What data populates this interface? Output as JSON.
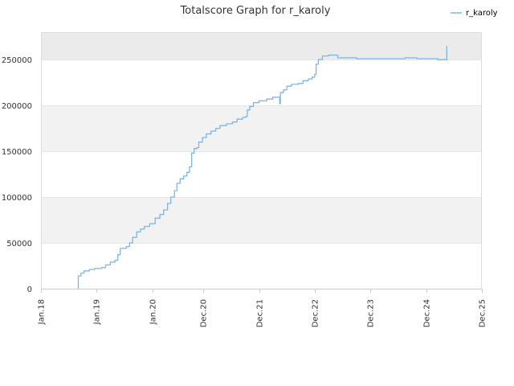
{
  "chart_data": {
    "type": "line",
    "title": "Totalscore Graph for r_karoly",
    "xlabel": "",
    "ylabel": "",
    "ylim": [
      0,
      280000
    ],
    "grid": true,
    "legend_position": "top-right",
    "y_ticks": [
      0,
      50000,
      100000,
      150000,
      200000,
      250000
    ],
    "y_tick_labels": [
      "0",
      "50000",
      "100000",
      "150000",
      "200000",
      "250000"
    ],
    "x_ticks": [
      "2018-01-01",
      "2019-01-01",
      "2020-01-01",
      "2020-12-01",
      "2021-12-01",
      "2022-12-01",
      "2023-12-01",
      "2024-12-01",
      "2025-12-01"
    ],
    "x_tick_labels": [
      "Jan.18",
      "Jan.19",
      "Jan.20",
      "Dec.20",
      "Dec.21",
      "Dec.22",
      "Dec.23",
      "Dec.24",
      "Dec.25"
    ],
    "xlim": [
      "2018-01-01",
      "2025-12-01"
    ],
    "series": [
      {
        "name": "r_karoly",
        "color": "#7cb5ec",
        "points": [
          [
            "2018-09-01",
            0
          ],
          [
            "2018-09-03",
            14000
          ],
          [
            "2018-09-20",
            17000
          ],
          [
            "2018-10-10",
            19500
          ],
          [
            "2018-11-15",
            21000
          ],
          [
            "2018-12-20",
            22000
          ],
          [
            "2019-02-01",
            23000
          ],
          [
            "2019-03-01",
            26000
          ],
          [
            "2019-04-01",
            29000
          ],
          [
            "2019-05-01",
            31000
          ],
          [
            "2019-05-20",
            37000
          ],
          [
            "2019-06-05",
            44000
          ],
          [
            "2019-07-15",
            46000
          ],
          [
            "2019-08-05",
            50000
          ],
          [
            "2019-08-25",
            56000
          ],
          [
            "2019-09-20",
            62000
          ],
          [
            "2019-10-15",
            65000
          ],
          [
            "2019-11-10",
            68000
          ],
          [
            "2019-12-15",
            71000
          ],
          [
            "2020-01-20",
            77000
          ],
          [
            "2020-02-20",
            81000
          ],
          [
            "2020-03-15",
            86000
          ],
          [
            "2020-04-10",
            93000
          ],
          [
            "2020-05-01",
            100000
          ],
          [
            "2020-05-25",
            107000
          ],
          [
            "2020-06-10",
            115000
          ],
          [
            "2020-07-01",
            120000
          ],
          [
            "2020-07-25",
            123000
          ],
          [
            "2020-08-15",
            127000
          ],
          [
            "2020-09-01",
            133000
          ],
          [
            "2020-09-15",
            148000
          ],
          [
            "2020-10-01",
            153000
          ],
          [
            "2020-10-20",
            154000
          ],
          [
            "2020-11-01",
            160000
          ],
          [
            "2020-11-25",
            165000
          ],
          [
            "2020-12-20",
            169000
          ],
          [
            "2021-01-20",
            172000
          ],
          [
            "2021-02-20",
            175000
          ],
          [
            "2021-03-20",
            178000
          ],
          [
            "2021-05-01",
            180000
          ],
          [
            "2021-06-10",
            182000
          ],
          [
            "2021-07-10",
            185000
          ],
          [
            "2021-08-15",
            187000
          ],
          [
            "2021-09-05",
            188000
          ],
          [
            "2021-09-15",
            195000
          ],
          [
            "2021-10-01",
            199000
          ],
          [
            "2021-10-25",
            203000
          ],
          [
            "2021-12-01",
            205000
          ],
          [
            "2022-01-20",
            207000
          ],
          [
            "2022-03-01",
            209000
          ],
          [
            "2022-04-10",
            209000
          ],
          [
            "2022-04-15",
            202000
          ],
          [
            "2022-04-20",
            214000
          ],
          [
            "2022-05-10",
            217000
          ],
          [
            "2022-06-01",
            221000
          ],
          [
            "2022-07-01",
            223000
          ],
          [
            "2022-08-15",
            224000
          ],
          [
            "2022-09-15",
            227000
          ],
          [
            "2022-10-20",
            229000
          ],
          [
            "2022-11-15",
            231000
          ],
          [
            "2022-12-01",
            234000
          ],
          [
            "2022-12-10",
            245000
          ],
          [
            "2022-12-25",
            250000
          ],
          [
            "2023-01-20",
            254000
          ],
          [
            "2023-03-01",
            255000
          ],
          [
            "2023-04-15",
            255000
          ],
          [
            "2023-05-01",
            252000
          ],
          [
            "2023-07-01",
            252000
          ],
          [
            "2023-09-01",
            251000
          ],
          [
            "2023-12-01",
            251000
          ],
          [
            "2024-03-01",
            251000
          ],
          [
            "2024-06-01",
            251000
          ],
          [
            "2024-07-15",
            252000
          ],
          [
            "2024-08-15",
            252000
          ],
          [
            "2024-10-01",
            251000
          ],
          [
            "2024-12-01",
            251000
          ],
          [
            "2025-01-01",
            251000
          ],
          [
            "2025-02-15",
            250000
          ],
          [
            "2025-04-15",
            265000
          ]
        ]
      }
    ]
  },
  "colors": {
    "series": "#7cb5ec",
    "band_alt": "#f2f2f2",
    "band_top": "#ebebeb",
    "grid": "#e6e6e6",
    "axis": "#cccccc",
    "text": "#333333"
  }
}
